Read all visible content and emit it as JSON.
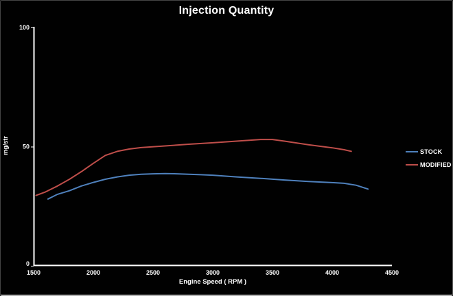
{
  "window": {
    "background": "#010101",
    "border_color": "#454545",
    "bottom_edge_color": "#b2b2b2"
  },
  "chart_data": {
    "type": "line",
    "title": "Injection Quantity",
    "xlabel": "Engine Speed ( RPM )",
    "ylabel": "mg/str",
    "xlim": [
      1500,
      4500
    ],
    "ylim": [
      0,
      100
    ],
    "x_ticks": [
      "1500",
      "2000",
      "2500",
      "3000",
      "3500",
      "4000",
      "4500"
    ],
    "x_tick_values": [
      1500,
      2000,
      2500,
      3000,
      3500,
      4000,
      4500
    ],
    "y_ticks": [
      "0",
      "50",
      "100"
    ],
    "y_tick_values": [
      0,
      50,
      100
    ],
    "grid": false,
    "legend_position": "right",
    "axis_color": "#ffffff",
    "text_color": "#ffffff",
    "series": [
      {
        "name": "STOCK",
        "color": "#4f81bd",
        "points": [
          [
            1620,
            28
          ],
          [
            1700,
            30
          ],
          [
            1800,
            31.5
          ],
          [
            1900,
            33.5
          ],
          [
            2000,
            35
          ],
          [
            2100,
            36.3
          ],
          [
            2200,
            37.3
          ],
          [
            2300,
            38
          ],
          [
            2400,
            38.4
          ],
          [
            2500,
            38.6
          ],
          [
            2600,
            38.7
          ],
          [
            2700,
            38.6
          ],
          [
            2800,
            38.4
          ],
          [
            2900,
            38.2
          ],
          [
            3000,
            38
          ],
          [
            3200,
            37.3
          ],
          [
            3400,
            36.7
          ],
          [
            3600,
            36
          ],
          [
            3800,
            35.4
          ],
          [
            4000,
            34.9
          ],
          [
            4100,
            34.6
          ],
          [
            4200,
            33.8
          ],
          [
            4300,
            32.2
          ]
        ]
      },
      {
        "name": "MODIFIED",
        "color": "#bf4e4a",
        "points": [
          [
            1520,
            29.5
          ],
          [
            1600,
            31
          ],
          [
            1700,
            33.5
          ],
          [
            1800,
            36.3
          ],
          [
            1900,
            39.5
          ],
          [
            2000,
            43
          ],
          [
            2100,
            46.3
          ],
          [
            2200,
            48
          ],
          [
            2300,
            49
          ],
          [
            2400,
            49.6
          ],
          [
            2600,
            50.3
          ],
          [
            2800,
            51
          ],
          [
            3000,
            51.6
          ],
          [
            3200,
            52.3
          ],
          [
            3400,
            53
          ],
          [
            3500,
            53
          ],
          [
            3600,
            52.3
          ],
          [
            3800,
            50.8
          ],
          [
            4000,
            49.5
          ],
          [
            4100,
            48.7
          ],
          [
            4160,
            48
          ]
        ]
      }
    ]
  }
}
